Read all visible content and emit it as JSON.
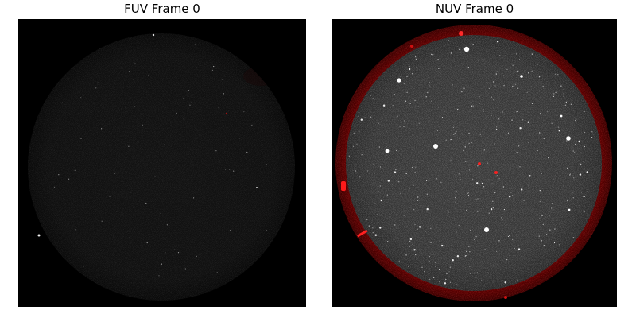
{
  "panels": [
    {
      "title": "FUV Frame 0",
      "image_name": "fuv-frame-image",
      "brightness": "very dim",
      "field_shape": "circle"
    },
    {
      "title": "NUV Frame 0",
      "image_name": "nuv-frame-image",
      "brightness": "bright",
      "field_shape": "circle",
      "edge_color": "#cc0000"
    }
  ]
}
